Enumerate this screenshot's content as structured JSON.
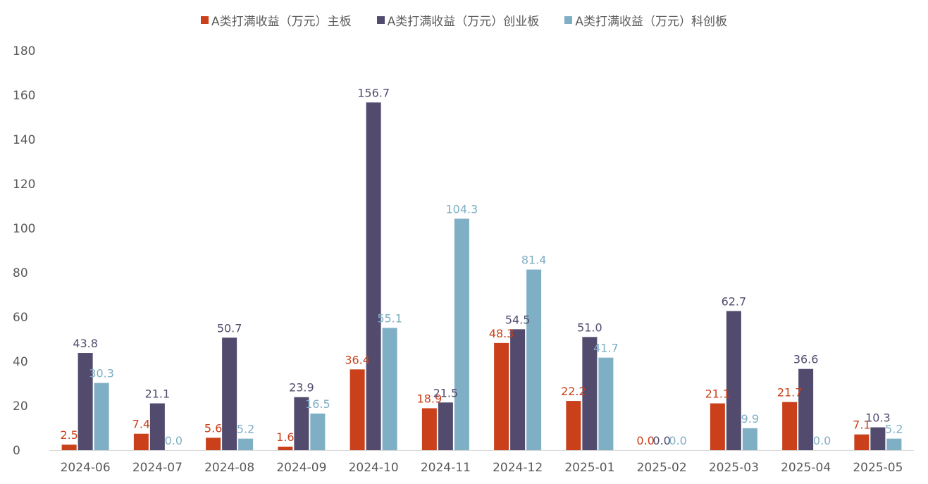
{
  "chart_data": {
    "type": "bar",
    "title": "",
    "xlabel": "",
    "ylabel": "",
    "ylim": [
      0,
      180
    ],
    "yticks": [
      0,
      20,
      40,
      60,
      80,
      100,
      120,
      140,
      160,
      180
    ],
    "legend_position": "top-center",
    "grid": false,
    "categories": [
      "2024-06",
      "2024-07",
      "2024-08",
      "2024-09",
      "2024-10",
      "2024-11",
      "2024-12",
      "2025-01",
      "2025-02",
      "2025-03",
      "2025-04",
      "2025-05"
    ],
    "series": [
      {
        "name": "A类打满收益（万元）主板",
        "color": "#C9401A",
        "values": [
          2.5,
          7.4,
          5.6,
          1.6,
          36.4,
          18.9,
          48.3,
          22.2,
          0.0,
          21.1,
          21.7,
          7.1
        ],
        "labels": [
          "2.5",
          "7.4",
          "5.6",
          "1.6",
          "36.4",
          "18.9",
          "48.3",
          "22.2",
          "0.0",
          "21.1",
          "21.7",
          "7.1"
        ]
      },
      {
        "name": "A类打满收益（万元）创业板",
        "color": "#524B6E",
        "values": [
          43.8,
          21.1,
          50.7,
          23.9,
          156.7,
          21.5,
          54.5,
          51.0,
          0.0,
          62.7,
          36.6,
          10.3
        ],
        "labels": [
          "43.8",
          "21.1",
          "50.7",
          "23.9",
          "156.7",
          "21.5",
          "54.5",
          "51.0",
          "0.0",
          "62.7",
          "36.6",
          "10.3"
        ]
      },
      {
        "name": "A类打满收益（万元）科创板",
        "color": "#7EAFC4",
        "values": [
          30.3,
          0.0,
          5.2,
          16.5,
          55.1,
          104.3,
          81.4,
          41.7,
          0.0,
          9.9,
          0.0,
          5.2
        ],
        "labels": [
          "30.3",
          "0.0",
          "5.2",
          "16.5",
          "55.1",
          "104.3",
          "81.4",
          "41.7",
          "0.0",
          "9.9",
          "0.0",
          "5.2"
        ]
      }
    ]
  }
}
